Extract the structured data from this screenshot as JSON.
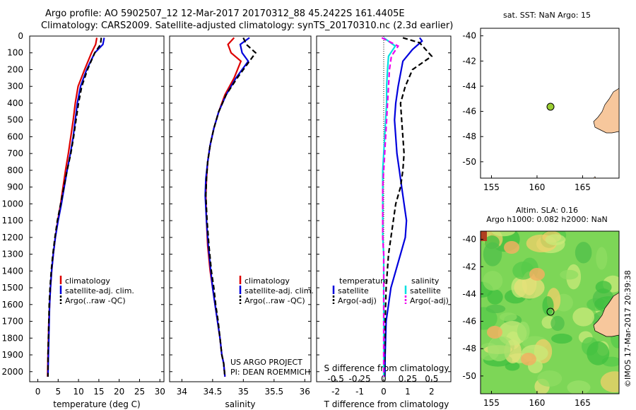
{
  "header": {
    "title_line1": "Argo profile: AO 5902507_12 12-Mar-2017 20170312_88 45.2422S 161.4405E",
    "title_line2": "Climatology: CARS2009. Satellite-adjusted climatology: synTS_20170310.nc (2.3d earlier)"
  },
  "colors": {
    "climatology": "#dd0000",
    "satellite": "#0000dd",
    "argo": "#000000",
    "salinity_satellite": "#00e0e0",
    "salinity_argo": "#ee00ee",
    "land": "#f7c79c"
  },
  "chart_data": [
    {
      "type": "line",
      "xlabel": "temperature (deg C)",
      "ylabel": "",
      "xlim": [
        -2,
        31
      ],
      "ylim": [
        2060,
        0
      ],
      "xticks": [
        "0",
        "5",
        "10",
        "15",
        "20",
        "25",
        "30"
      ],
      "yticks": [
        "0",
        "100",
        "200",
        "300",
        "400",
        "500",
        "600",
        "700",
        "800",
        "900",
        "1000",
        "1100",
        "1200",
        "1300",
        "1400",
        "1500",
        "1600",
        "1700",
        "1800",
        "1900",
        "2000"
      ],
      "legend": [
        "climatology",
        "satellite-adj. clim.",
        "Argo(..raw -QC)"
      ],
      "series": [
        {
          "name": "climatology",
          "x": [
            14.5,
            14.2,
            13.2,
            11.5,
            9.9,
            9.2,
            8.7,
            8.1,
            7.5,
            6.8,
            6.2,
            5.6,
            4.9,
            4.3,
            3.8,
            3.4,
            3.1,
            2.9,
            2.7,
            2.6,
            2.5,
            2.4
          ],
          "y": [
            10,
            50,
            100,
            200,
            300,
            400,
            500,
            600,
            700,
            800,
            900,
            1000,
            1100,
            1200,
            1300,
            1400,
            1500,
            1600,
            1700,
            1800,
            1900,
            2030
          ]
        },
        {
          "name": "satellite-adj. clim.",
          "x": [
            16.3,
            16.0,
            14.0,
            12.0,
            10.5,
            9.7,
            9.2,
            8.7,
            8.0,
            7.2,
            6.5,
            5.8,
            5.0,
            4.3,
            3.8,
            3.4,
            3.1,
            2.9,
            2.8,
            2.7,
            2.6,
            2.5
          ],
          "y": [
            10,
            50,
            100,
            200,
            300,
            400,
            500,
            600,
            700,
            800,
            900,
            1000,
            1100,
            1200,
            1300,
            1400,
            1500,
            1600,
            1700,
            1800,
            1900,
            2030
          ]
        },
        {
          "name": "Argo(..raw -QC)",
          "x": [
            15.6,
            15.4,
            14.0,
            12.2,
            10.8,
            10.0,
            9.4,
            8.8,
            8.1,
            7.2,
            6.4,
            5.6,
            4.8,
            4.2,
            3.7,
            3.3,
            3.0,
            2.8,
            2.7,
            2.6,
            2.5,
            2.5
          ],
          "y": [
            10,
            50,
            100,
            200,
            300,
            400,
            500,
            600,
            700,
            800,
            900,
            1000,
            1100,
            1200,
            1300,
            1400,
            1500,
            1600,
            1700,
            1800,
            1900,
            2030
          ]
        }
      ]
    },
    {
      "type": "line",
      "xlabel": "salinity",
      "ylabel": "",
      "xlim": [
        33.8,
        36.1
      ],
      "ylim": [
        2060,
        0
      ],
      "xticks": [
        "34",
        "34.5",
        "35",
        "35.5",
        "36"
      ],
      "legend": [
        "climatology",
        "satellite-adj. clim.",
        "Argo(..raw -QC)"
      ],
      "annotation": [
        "US ARGO PROJECT",
        "PI: DEAN ROEMMICH"
      ],
      "series": [
        {
          "name": "climatology",
          "x": [
            34.85,
            34.75,
            34.8,
            34.96,
            34.85,
            34.7,
            34.6,
            34.52,
            34.46,
            34.42,
            34.4,
            34.39,
            34.4,
            34.42,
            34.46,
            34.5,
            34.54,
            34.58,
            34.62,
            34.65,
            34.68,
            34.7
          ],
          "y": [
            10,
            50,
            100,
            150,
            250,
            350,
            450,
            550,
            650,
            750,
            850,
            950,
            1100,
            1250,
            1400,
            1500,
            1600,
            1700,
            1800,
            1900,
            1950,
            2030
          ]
        },
        {
          "name": "satellite-adj. clim.",
          "x": [
            35.1,
            34.95,
            34.98,
            35.08,
            34.88,
            34.72,
            34.6,
            34.52,
            34.46,
            34.42,
            34.39,
            34.38,
            34.4,
            34.43,
            34.47,
            34.5,
            34.54,
            34.58,
            34.62,
            34.65,
            34.68,
            34.7
          ],
          "y": [
            10,
            50,
            100,
            150,
            250,
            350,
            450,
            550,
            650,
            750,
            850,
            950,
            1100,
            1250,
            1400,
            1500,
            1600,
            1700,
            1800,
            1900,
            1950,
            2030
          ]
        },
        {
          "name": "Argo(..raw -QC)",
          "x": [
            35.0,
            35.05,
            35.2,
            35.1,
            34.9,
            34.72,
            34.6,
            34.52,
            34.46,
            34.42,
            34.4,
            34.39,
            34.41,
            34.44,
            34.48,
            34.52,
            34.55,
            34.59,
            34.62,
            34.65,
            34.68,
            34.7
          ],
          "y": [
            10,
            50,
            100,
            150,
            250,
            350,
            450,
            550,
            650,
            750,
            850,
            950,
            1100,
            1250,
            1400,
            1500,
            1600,
            1700,
            1800,
            1900,
            1950,
            2030
          ]
        }
      ]
    },
    {
      "type": "line",
      "xlabel": "T difference from climatology",
      "xlabel_top": "S difference from climatology",
      "ylabel": "",
      "xlim": [
        -2.8,
        2.8
      ],
      "ylim": [
        2060,
        0
      ],
      "xticks_bottom": [
        "-2",
        "-1",
        "0",
        "1",
        "2"
      ],
      "xticks_top": [
        "-0.5",
        "-0.25",
        "0",
        "0.25",
        "0.5"
      ],
      "legend_temperature_title": "temperature",
      "legend_salinity_title": "salinity",
      "legend_temperature": [
        "satellite",
        "Argo(-adj)"
      ],
      "legend_salinity": [
        "satellite",
        "Argo(-adj)"
      ],
      "series": [
        {
          "name": "temperature satellite",
          "unit": "T",
          "x": [
            1.5,
            1.6,
            1.2,
            0.8,
            0.6,
            0.5,
            0.45,
            0.5,
            0.55,
            0.65,
            0.75,
            0.85,
            0.95,
            0.9,
            0.7,
            0.5,
            0.3,
            0.2,
            0.1,
            0.08,
            0.06,
            0.05
          ],
          "y": [
            10,
            30,
            80,
            150,
            300,
            400,
            500,
            600,
            700,
            800,
            900,
            1000,
            1100,
            1200,
            1300,
            1400,
            1500,
            1600,
            1700,
            1800,
            1900,
            2030
          ]
        },
        {
          "name": "temperature Argo(-adj)",
          "unit": "T",
          "x": [
            0.8,
            1.5,
            2.0,
            1.2,
            0.9,
            0.7,
            0.75,
            0.8,
            0.85,
            0.8,
            0.7,
            0.5,
            0.4,
            0.3,
            0.2,
            0.15,
            0.1,
            0.08,
            0.06,
            0.05,
            0.04,
            0.03
          ],
          "y": [
            10,
            40,
            120,
            200,
            300,
            400,
            500,
            600,
            700,
            800,
            900,
            1000,
            1100,
            1200,
            1300,
            1400,
            1500,
            1600,
            1700,
            1800,
            1900,
            2030
          ]
        },
        {
          "name": "salinity satellite",
          "unit": "S",
          "x": [
            0.0,
            0.12,
            0.05,
            0.04,
            0.03,
            0.03,
            0.02,
            0.01,
            0.0,
            -0.01,
            -0.01,
            -0.01,
            -0.01,
            -0.01,
            0.0,
            0.0,
            0.0,
            0.0,
            0.0,
            0.0,
            0.0,
            0.0
          ],
          "y": [
            10,
            60,
            120,
            200,
            300,
            400,
            500,
            600,
            700,
            800,
            900,
            1000,
            1100,
            1200,
            1300,
            1400,
            1500,
            1600,
            1700,
            1800,
            1900,
            2030
          ]
        },
        {
          "name": "salinity Argo(-adj)",
          "unit": "S",
          "x": [
            -0.02,
            0.15,
            0.08,
            0.06,
            0.05,
            0.04,
            0.03,
            0.02,
            0.01,
            0.0,
            -0.01,
            -0.01,
            -0.01,
            -0.01,
            0.0,
            0.0,
            0.0,
            0.0,
            0.0,
            0.0,
            0.0,
            0.0
          ],
          "y": [
            10,
            60,
            120,
            200,
            300,
            400,
            500,
            600,
            700,
            800,
            900,
            1000,
            1100,
            1200,
            1300,
            1400,
            1500,
            1600,
            1700,
            1800,
            1900,
            2030
          ]
        }
      ]
    },
    {
      "type": "scatter",
      "title": "sat. SST: NaN Argo: 15",
      "xlim": [
        153.8,
        169
      ],
      "ylim": [
        -51.3,
        -39.4
      ],
      "xticks": [
        "155",
        "160",
        "165"
      ],
      "yticks": [
        "-40",
        "-42",
        "-44",
        "-46",
        "-48",
        "-50"
      ],
      "points": [
        {
          "x": 161.44,
          "y": -45.24
        }
      ]
    },
    {
      "type": "heatmap",
      "title_line1": "Altim. SLA: 0.16",
      "title_line2": "Argo h1000: 0.082 h2000: NaN",
      "xlim": [
        153.8,
        169
      ],
      "ylim": [
        -51.3,
        -39.4
      ],
      "xticks": [
        "155",
        "160",
        "165"
      ],
      "yticks": [
        "-40",
        "-42",
        "-44",
        "-46",
        "-48",
        "-50"
      ],
      "points": [
        {
          "x": 161.44,
          "y": -45.24
        }
      ],
      "side_label": "©IMOS 17-Mar-2017 20:39:38"
    }
  ]
}
